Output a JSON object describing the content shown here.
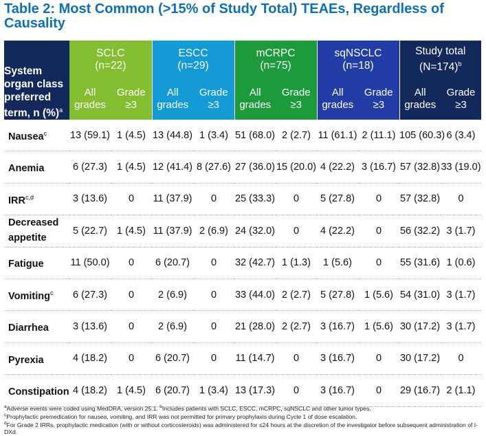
{
  "title": "Table 2: Most Common (>15% of Study Total) TEAEs, Regardless of Causality",
  "colors": {
    "title": "#0f6fb4",
    "header_soc": "#13295c",
    "sclc": "#83bd30",
    "escc": "#149ad5",
    "mcrpc": "#1c9a3c",
    "sqnsclc": "#223da6",
    "total": "#13295c"
  },
  "header": {
    "soc_label": "System organ class preferred term, n (%)",
    "soc_sup": "a",
    "groups": [
      {
        "name": "SCLC",
        "n": "(n=22)",
        "sup": ""
      },
      {
        "name": "ESCC",
        "n": "(n=29)",
        "sup": ""
      },
      {
        "name": "mCRPC",
        "n": "(n=75)",
        "sup": ""
      },
      {
        "name": "sqNSCLC",
        "n": "(n=18)",
        "sup": ""
      },
      {
        "name": "Study total",
        "n": "(N=174)",
        "sup": "b"
      }
    ],
    "all_grades": "All grades",
    "grade3": "Grade ≥3"
  },
  "rows": [
    {
      "term": "Nausea",
      "sup": "c",
      "values": [
        "13 (59.1)",
        "1 (4.5)",
        "13 (44.8)",
        "1 (3.4)",
        "51 (68.0)",
        "2 (2.7)",
        "11 (61.1)",
        "2 (11.1)",
        "105 (60.3)",
        "6 (3.4)"
      ]
    },
    {
      "term": "Anemia",
      "sup": "",
      "values": [
        "6 (27.3)",
        "1 (4.5)",
        "12 (41.4)",
        "8 (27.6)",
        "27 (36.0)",
        "15 (20.0)",
        "4 (22.2)",
        "3 (16.7)",
        "57 (32.8)",
        "33 (19.0)"
      ]
    },
    {
      "term": "IRR",
      "sup": "c,d",
      "values": [
        "3 (13.6)",
        "0",
        "11 (37.9)",
        "0",
        "25 (33.3)",
        "0",
        "5 (27.8)",
        "0",
        "57 (32.8)",
        "0"
      ]
    },
    {
      "term": "Decreased appetite",
      "sup": "",
      "values": [
        "5 (22.7)",
        "1 (4.5)",
        "11 (37.9)",
        "2 (6.9)",
        "24 (32.0)",
        "0",
        "4 (22.2)",
        "0",
        "56 (32.2)",
        "3 (1.7)"
      ]
    },
    {
      "term": "Fatigue",
      "sup": "",
      "values": [
        "11 (50.0)",
        "0",
        "6 (20.7)",
        "0",
        "32 (42.7)",
        "1 (1.3)",
        "1 (5.6)",
        "0",
        "55 (31.6)",
        "1 (0.6)"
      ]
    },
    {
      "term": "Vomiting",
      "sup": "c",
      "values": [
        "6 (27.3)",
        "0",
        "2 (6.9)",
        "0",
        "33 (44.0)",
        "2 (2.7)",
        "5 (27.8)",
        "1 (5.6)",
        "54 (31.0)",
        "3 (1.7)"
      ]
    },
    {
      "term": "Diarrhea",
      "sup": "",
      "values": [
        "3 (13.6)",
        "0",
        "2 (6.9)",
        "0",
        "21 (28.0)",
        "2 (2.7)",
        "3 (16.7)",
        "1 (5.6)",
        "30 (17.2)",
        "3 (1.7)"
      ]
    },
    {
      "term": "Pyrexia",
      "sup": "",
      "values": [
        "4 (18.2)",
        "0",
        "6 (20.7)",
        "0",
        "11 (14.7)",
        "0",
        "3 (16.7)",
        "0",
        "30 (17.2)",
        "0"
      ]
    },
    {
      "term": "Constipation",
      "sup": "",
      "values": [
        "4 (18.2)",
        "1 (4.5)",
        "6 (20.7)",
        "1 (3.4)",
        "13 (17.3)",
        "0",
        "3 (16.7)",
        "0",
        "29 (16.7)",
        "2 (1.1)"
      ]
    }
  ],
  "footnotes": [
    {
      "sup": "a",
      "text": "Adverse events were coded using MedDRA, version 25.1."
    },
    {
      "sup": "b",
      "text": "Includes patients with SCLC, ESCC, mCRPC, sqNSCLC and other tumor types."
    },
    {
      "sup": "c",
      "text": "Prophylactic premedication for nausea, vomiting, and IRR was not permitted for primary prophylaxis during Cycle 1 of dose escalation."
    },
    {
      "sup": "d",
      "text": "For Grade 2 IRRs, prophylactic medication (with or without corticosteroids) was administered for ≤24 hours at the discretion of the investigator before subsequent administration of I-DXd."
    }
  ]
}
